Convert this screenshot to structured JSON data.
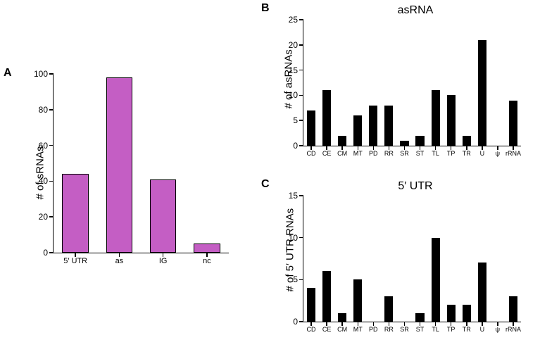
{
  "panelA": {
    "label": "A",
    "type": "bar",
    "ylabel": "# of sRNAs",
    "ylim": [
      0,
      100
    ],
    "ytick_step": 20,
    "categories": [
      "5′ UTR",
      "as",
      "IG",
      "nc"
    ],
    "values": [
      44,
      98,
      41,
      5
    ],
    "bar_color": "#c45ec4",
    "bar_border": "#000000",
    "background_color": "#ffffff",
    "label_fontsize": 15,
    "tick_fontsize": 12,
    "panel_label_fontsize": 16
  },
  "panelB": {
    "label": "B",
    "title": "asRNA",
    "type": "bar",
    "ylabel": "# of asRNAs",
    "ylim": [
      0,
      25
    ],
    "ytick_step": 5,
    "categories": [
      "CD",
      "CE",
      "CM",
      "MT",
      "PD",
      "RR",
      "SR",
      "ST",
      "TL",
      "TP",
      "TR",
      "U",
      "ψ",
      "rRNA"
    ],
    "values": [
      7,
      11,
      2,
      6,
      8,
      8,
      1,
      2,
      11,
      10,
      2,
      21,
      0,
      9
    ],
    "bar_color": "#000000",
    "background_color": "#ffffff",
    "label_fontsize": 15,
    "tick_fontsize": 12,
    "title_fontsize": 16
  },
  "panelC": {
    "label": "C",
    "title": "5′ UTR",
    "type": "bar",
    "ylabel": "# of 5′ UTR RNAs",
    "ylim": [
      0,
      15
    ],
    "ytick_step": 5,
    "categories": [
      "CD",
      "CE",
      "CM",
      "MT",
      "PD",
      "RR",
      "SR",
      "ST",
      "TL",
      "TP",
      "TR",
      "U",
      "ψ",
      "rRNA"
    ],
    "values": [
      4,
      6,
      1,
      5,
      0,
      3,
      0,
      1,
      10,
      2,
      2,
      7,
      0,
      3
    ],
    "bar_color": "#000000",
    "background_color": "#ffffff",
    "label_fontsize": 15,
    "tick_fontsize": 12,
    "title_fontsize": 16
  }
}
